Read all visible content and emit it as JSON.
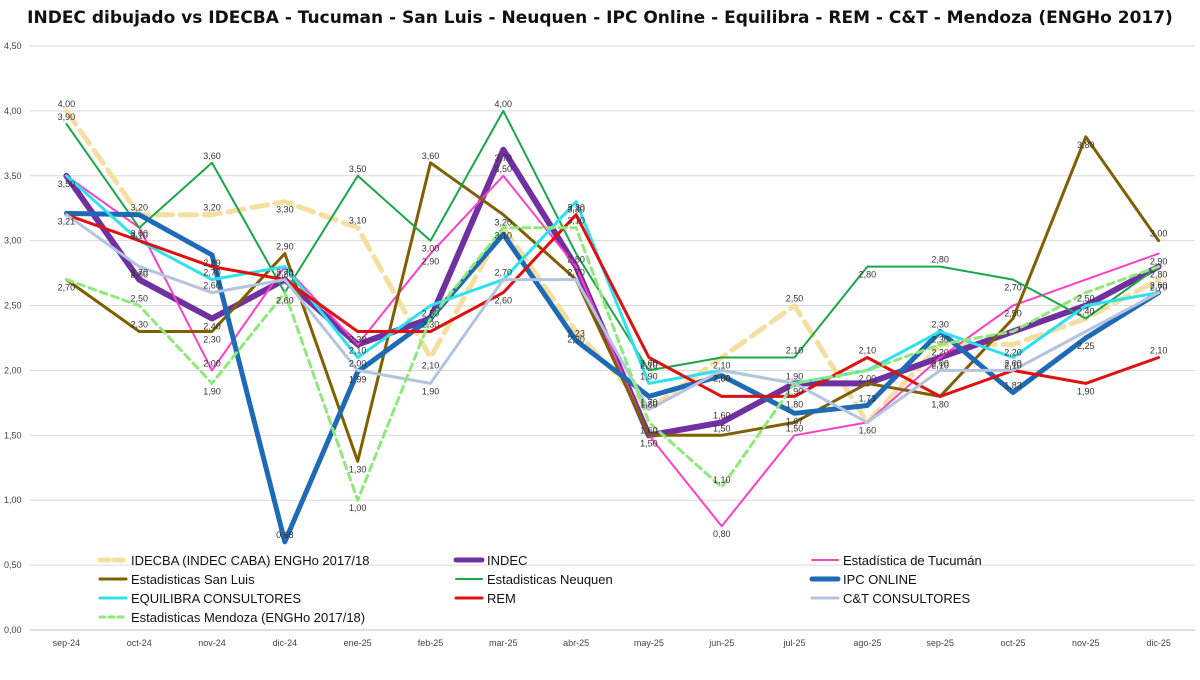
{
  "chart_data": {
    "type": "line",
    "title": "INDEC dibujado vs IDECBA - Tucuman - San Luis - Neuquen - IPC Online - Equilibra - REM - C&T - Mendoza (ENGHo 2017)",
    "xlabel": "",
    "ylabel": "",
    "ylim": [
      0,
      4.5
    ],
    "yticks": [
      "0,00",
      "0,50",
      "1,00",
      "1,50",
      "2,00",
      "2,50",
      "3,00",
      "3,50",
      "4,00",
      "4,50"
    ],
    "grid": true,
    "legend_position": "bottom-inside",
    "categories": [
      "sep-24",
      "oct-24",
      "nov-24",
      "dic-24",
      "ene-25",
      "feb-25",
      "mar-25",
      "abr-25",
      "may-25",
      "jun-25",
      "jul-25",
      "ago-25",
      "sep-25",
      "oct-25",
      "nov-25",
      "dic-25"
    ],
    "series": [
      {
        "name": "IDECBA (INDEC CABA) ENGHo 2017/18",
        "color": "#f4dfa0",
        "dash": "16,8",
        "width": 5,
        "values": [
          4.0,
          3.2,
          3.2,
          3.3,
          3.1,
          2.1,
          3.1,
          2.3,
          1.7,
          2.1,
          2.5,
          1.6,
          2.2,
          2.2,
          2.4,
          2.7
        ],
        "labels": [
          "4,00",
          "",
          "3,20",
          "3,30",
          "3,10",
          "2,10",
          "",
          "2,30",
          "1,70",
          "",
          "2,50",
          "",
          "",
          "2,20",
          "",
          "2,70"
        ]
      },
      {
        "name": "INDEC",
        "color": "#7030a0",
        "dash": "",
        "width": 6,
        "values": [
          3.5,
          2.7,
          2.4,
          2.7,
          2.2,
          2.4,
          3.7,
          2.8,
          1.5,
          1.6,
          1.9,
          1.9,
          2.1,
          2.3,
          2.5,
          2.8
        ],
        "labels": [
          "3,50",
          "2,70",
          "2,40",
          "",
          "",
          "",
          "3,70",
          "2,80",
          "1,50",
          "1,60",
          "1,90",
          "",
          "2,10",
          "",
          "",
          ""
        ]
      },
      {
        "name": "Estadística de Tucumán",
        "color": "#ff3fc8",
        "dash": "",
        "width": 2,
        "values": [
          3.5,
          3.1,
          2.0,
          2.8,
          2.2,
          2.9,
          3.5,
          2.8,
          1.5,
          0.8,
          1.5,
          1.6,
          2.1,
          2.5,
          2.7,
          2.9
        ],
        "labels": [
          "",
          "3,10",
          "2,00",
          "",
          "",
          "2,90",
          "3,50",
          "",
          "",
          "0,80",
          "1,50",
          "1,60",
          "",
          "2,50",
          "",
          "2,90"
        ]
      },
      {
        "name": "Estadisticas San Luis",
        "color": "#7f6000",
        "dash": "",
        "width": 3,
        "values": [
          2.7,
          2.3,
          2.3,
          2.9,
          1.3,
          3.6,
          3.2,
          2.7,
          1.5,
          1.5,
          1.6,
          1.9,
          1.8,
          2.4,
          3.8,
          3.0
        ],
        "labels": [
          "2,70",
          "2,30",
          "2,30",
          "2,90",
          "1,30",
          "3,60",
          "3,20",
          "2,70",
          "",
          "1,50",
          "",
          "",
          "1,80",
          "",
          "3,80",
          "3,00"
        ]
      },
      {
        "name": "Estadisticas Neuquen",
        "color": "#1aa64a",
        "dash": "",
        "width": 2,
        "values": [
          3.9,
          3.1,
          3.6,
          2.6,
          3.5,
          3.0,
          4.0,
          2.9,
          2.0,
          2.1,
          2.1,
          2.8,
          2.8,
          2.7,
          2.4,
          2.8
        ],
        "labels": [
          "3,90",
          "",
          "3,60",
          "2,60",
          "3,50",
          "3,00",
          "4,00",
          "",
          "2,00",
          "2,10",
          "2,10",
          "2,80",
          "2,80",
          "2,70",
          "2,40",
          "2,80"
        ]
      },
      {
        "name": "IPC ONLINE",
        "color": "#1f6ab4",
        "dash": "",
        "width": 5,
        "values": [
          3.21,
          3.2,
          2.89,
          0.68,
          1.99,
          2.4,
          3.05,
          2.23,
          1.8,
          1.96,
          1.67,
          1.73,
          2.3,
          1.83,
          2.25,
          2.6
        ],
        "labels": [
          "3,21",
          "3,20",
          "2,89",
          "0,68",
          "1,99",
          "",
          "",
          "2,23",
          "1,80",
          "",
          "1,67",
          "1,73",
          "2,30",
          "1,83",
          "2,25",
          "2,60"
        ]
      },
      {
        "name": "EQUILIBRA CONSULTORES",
        "color": "#2fe0ee",
        "dash": "",
        "width": 3,
        "values": [
          3.5,
          3.0,
          2.7,
          2.8,
          2.1,
          2.5,
          2.7,
          3.3,
          1.9,
          2.0,
          1.9,
          2.0,
          2.3,
          2.1,
          2.5,
          2.6
        ],
        "labels": [
          "",
          "",
          "2,70",
          "2,80",
          "2,10",
          "2,50",
          "2,70",
          "3,30",
          "1,90",
          "2,00",
          "",
          "2,00",
          "2,30",
          "2,10",
          "2,50",
          ""
        ]
      },
      {
        "name": "REM",
        "color": "#e01010",
        "dash": "",
        "width": 3,
        "values": [
          3.2,
          3.0,
          2.8,
          2.7,
          2.3,
          2.3,
          2.6,
          3.2,
          2.1,
          1.8,
          1.8,
          2.1,
          1.8,
          2.0,
          1.9,
          2.1
        ],
        "labels": [
          "",
          "3,00",
          "",
          "2,70",
          "2,30",
          "2,30",
          "2,60",
          "3,20",
          "2,10",
          "",
          "1,80",
          "2,10",
          "",
          "2,00",
          "1,90",
          "2,10"
        ]
      },
      {
        "name": "C&T CONSULTORES",
        "color": "#b4c4de",
        "dash": "",
        "width": 3,
        "values": [
          3.2,
          2.8,
          2.6,
          2.7,
          2.0,
          1.9,
          2.7,
          2.7,
          1.7,
          2.0,
          1.9,
          1.6,
          2.0,
          2.0,
          2.3,
          2.6
        ],
        "labels": [
          "",
          "2,80",
          "2,60",
          "",
          "2,00",
          "1,90",
          "",
          "",
          "",
          "2,00",
          "1,90",
          "",
          "2,00",
          "",
          "",
          ""
        ]
      },
      {
        "name": "Estadisticas Mendoza (ENGHo 2017/18)",
        "color": "#8ee87a",
        "dash": "7,5",
        "width": 3,
        "values": [
          2.7,
          2.5,
          1.9,
          2.6,
          1.0,
          2.4,
          3.1,
          3.1,
          1.6,
          1.1,
          1.9,
          2.0,
          2.2,
          2.3,
          2.6,
          2.8
        ],
        "labels": [
          "",
          "2,50",
          "1,90",
          "",
          "1,00",
          "",
          "3,10",
          "3,10",
          "1,60",
          "1,10",
          "",
          "",
          "2,20",
          "",
          "",
          ""
        ]
      }
    ]
  }
}
